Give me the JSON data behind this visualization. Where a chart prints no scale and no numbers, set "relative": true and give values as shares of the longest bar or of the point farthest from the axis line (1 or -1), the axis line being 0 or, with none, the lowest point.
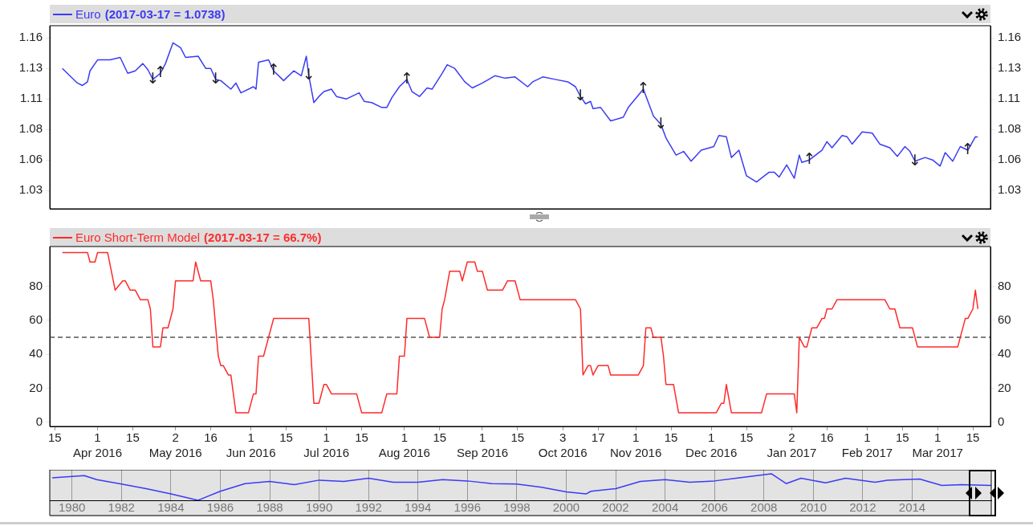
{
  "chart_data": [
    {
      "type": "line",
      "title": "(2017-03-17 = 1.0738)",
      "legend": "top left",
      "tick_labels": "y",
      "x": [
        "2016-03-18",
        "2016-03-24",
        "2016-03-26",
        "2016-03-28",
        "2016-03-29",
        "2016-04-01",
        "2016-04-06",
        "2016-04-10",
        "2016-04-13",
        "2016-04-16",
        "2016-04-19",
        "2016-04-21",
        "2016-04-23",
        "2016-04-26",
        "2016-04-28",
        "2016-05-01",
        "2016-05-04",
        "2016-05-06",
        "2016-05-11",
        "2016-05-14",
        "2016-05-16",
        "2016-05-18",
        "2016-05-20",
        "2016-05-24",
        "2016-05-26",
        "2016-05-28",
        "2016-06-02",
        "2016-06-03",
        "2016-06-04",
        "2016-06-08",
        "2016-06-10",
        "2016-06-14",
        "2016-06-18",
        "2016-06-21",
        "2016-06-23",
        "2016-06-24",
        "2016-06-26",
        "2016-06-28",
        "2016-06-30",
        "2016-07-03",
        "2016-07-05",
        "2016-07-09",
        "2016-07-14",
        "2016-07-16",
        "2016-07-19",
        "2016-07-23",
        "2016-07-25",
        "2016-07-27",
        "2016-07-30",
        "2016-08-02",
        "2016-08-04",
        "2016-08-07",
        "2016-08-10",
        "2016-08-12",
        "2016-08-16",
        "2016-08-18",
        "2016-08-21",
        "2016-08-25",
        "2016-08-28",
        "2016-09-01",
        "2016-09-06",
        "2016-09-10",
        "2016-09-14",
        "2016-09-19",
        "2016-09-21",
        "2016-09-25",
        "2016-09-30",
        "2016-10-05",
        "2016-10-08",
        "2016-10-10",
        "2016-10-12",
        "2016-10-14",
        "2016-10-15",
        "2016-10-18",
        "2016-10-22",
        "2016-10-27",
        "2016-10-29",
        "2016-11-04",
        "2016-11-06",
        "2016-11-08",
        "2016-11-11",
        "2016-11-13",
        "2016-11-17",
        "2016-11-20",
        "2016-11-23",
        "2016-11-27",
        "2016-12-02",
        "2016-12-04",
        "2016-12-07",
        "2016-12-09",
        "2016-12-12",
        "2016-12-15",
        "2016-12-19",
        "2016-12-24",
        "2016-12-26",
        "2016-12-28",
        "2016-12-31",
        "2017-01-03",
        "2017-01-05",
        "2017-01-06",
        "2017-01-09",
        "2017-01-14",
        "2017-01-16",
        "2017-01-18",
        "2017-01-22",
        "2017-01-24",
        "2017-01-26",
        "2017-01-30",
        "2017-02-03",
        "2017-02-06",
        "2017-02-10",
        "2017-02-13",
        "2017-02-16",
        "2017-02-18",
        "2017-02-20",
        "2017-02-24",
        "2017-02-27",
        "2017-03-02",
        "2017-03-04",
        "2017-03-07",
        "2017-03-10",
        "2017-03-13",
        "2017-03-16",
        "2017-03-17"
      ],
      "series": [
        {
          "name": "Euro",
          "color": "#3b3bf5",
          "values": [
            1.13,
            1.118,
            1.116,
            1.119,
            1.128,
            1.137,
            1.137,
            1.139,
            1.126,
            1.128,
            1.134,
            1.129,
            1.121,
            1.126,
            1.134,
            1.151,
            1.147,
            1.139,
            1.14,
            1.13,
            1.13,
            1.121,
            1.12,
            1.113,
            1.118,
            1.11,
            1.115,
            1.113,
            1.135,
            1.137,
            1.128,
            1.12,
            1.128,
            1.124,
            1.14,
            1.124,
            1.102,
            1.107,
            1.111,
            1.113,
            1.107,
            1.105,
            1.11,
            1.103,
            1.102,
            1.098,
            1.098,
            1.106,
            1.115,
            1.121,
            1.111,
            1.107,
            1.114,
            1.113,
            1.126,
            1.133,
            1.13,
            1.119,
            1.114,
            1.118,
            1.124,
            1.122,
            1.123,
            1.115,
            1.119,
            1.123,
            1.121,
            1.119,
            1.115,
            1.107,
            1.101,
            1.103,
            1.097,
            1.098,
            1.087,
            1.09,
            1.098,
            1.113,
            1.102,
            1.091,
            1.084,
            1.073,
            1.059,
            1.062,
            1.054,
            1.063,
            1.066,
            1.075,
            1.074,
            1.057,
            1.063,
            1.042,
            1.037,
            1.045,
            1.045,
            1.041,
            1.051,
            1.04,
            1.059,
            1.053,
            1.055,
            1.063,
            1.07,
            1.065,
            1.075,
            1.074,
            1.068,
            1.078,
            1.077,
            1.068,
            1.065,
            1.058,
            1.066,
            1.062,
            1.054,
            1.057,
            1.055,
            1.05,
            1.061,
            1.054,
            1.066,
            1.063,
            1.074,
            1.0738
          ]
        }
      ],
      "xlim": [
        "2016-03-13",
        "2017-03-22"
      ],
      "ylim": [
        1.015,
        1.165
      ],
      "yticks": [
        1.03,
        {
          "value": 1.055,
          "label": "1.06"
        },
        1.08,
        {
          "value": 1.105,
          "label": "1.11"
        },
        1.13,
        {
          "value": 1.155,
          "label": "1.16"
        }
      ],
      "y2lim": [
        1.015,
        1.165
      ],
      "y2ticks": [
        1.03,
        {
          "value": 1.055,
          "label": "1.06"
        },
        1.08,
        {
          "value": 1.105,
          "label": "1.11"
        },
        1.13,
        {
          "value": 1.155,
          "label": "1.16"
        }
      ],
      "annotations": [
        {
          "text": "↓",
          "x": "2016-04-23",
          "y": 1.121
        },
        {
          "text": "↑",
          "x": "2016-04-26",
          "y": 1.126
        },
        {
          "text": "↓",
          "x": "2016-05-18",
          "y": 1.121
        },
        {
          "text": "↑",
          "x": "2016-06-10",
          "y": 1.128
        },
        {
          "text": "↓",
          "x": "2016-06-24",
          "y": 1.124
        },
        {
          "text": "↑",
          "x": "2016-08-02",
          "y": 1.121
        },
        {
          "text": "↓",
          "x": "2016-10-10",
          "y": 1.107
        },
        {
          "text": "↑",
          "x": "2016-11-04",
          "y": 1.113
        },
        {
          "text": "↓",
          "x": "2016-11-11",
          "y": 1.084
        },
        {
          "text": "↑",
          "x": "2017-01-09",
          "y": 1.055
        },
        {
          "text": "↓",
          "x": "2017-02-20",
          "y": 1.054
        },
        {
          "text": "↑",
          "x": "2017-03-13",
          "y": 1.063
        }
      ]
    },
    {
      "type": "line",
      "title": "(2017-03-17 = 66.7%)",
      "legend": "top left",
      "x": [
        "2016-03-18",
        "2016-03-28",
        "2016-03-29",
        "2016-03-31",
        "2016-04-01",
        "2016-04-05",
        "2016-04-08",
        "2016-04-11",
        "2016-04-12",
        "2016-04-14",
        "2016-04-16",
        "2016-04-18",
        "2016-04-21",
        "2016-04-22",
        "2016-04-23",
        "2016-04-26",
        "2016-04-27",
        "2016-04-29",
        "2016-05-01",
        "2016-05-02",
        "2016-05-09",
        "2016-05-10",
        "2016-05-12",
        "2016-05-16",
        "2016-05-17",
        "2016-05-19",
        "2016-05-20",
        "2016-05-21",
        "2016-05-23",
        "2016-05-24",
        "2016-05-26",
        "2016-05-31",
        "2016-06-02",
        "2016-06-03",
        "2016-06-04",
        "2016-06-06",
        "2016-06-10",
        "2016-06-24",
        "2016-06-26",
        "2016-06-28",
        "2016-06-30",
        "2016-07-01",
        "2016-07-03",
        "2016-07-13",
        "2016-07-15",
        "2016-07-23",
        "2016-07-25",
        "2016-07-29",
        "2016-07-30",
        "2016-08-01",
        "2016-08-02",
        "2016-08-09",
        "2016-08-11",
        "2016-08-15",
        "2016-08-16",
        "2016-08-17",
        "2016-08-19",
        "2016-08-23",
        "2016-08-24",
        "2016-08-26",
        "2016-08-29",
        "2016-08-30",
        "2016-09-01",
        "2016-09-03",
        "2016-09-09",
        "2016-09-11",
        "2016-09-14",
        "2016-09-16",
        "2016-10-08",
        "2016-10-10",
        "2016-10-11",
        "2016-10-13",
        "2016-10-14",
        "2016-10-15",
        "2016-10-17",
        "2016-10-21",
        "2016-10-22",
        "2016-11-02",
        "2016-11-04",
        "2016-11-05",
        "2016-11-07",
        "2016-11-08",
        "2016-11-11",
        "2016-11-12",
        "2016-11-13",
        "2016-11-16",
        "2016-11-18",
        "2016-12-03",
        "2016-12-05",
        "2016-12-06",
        "2016-12-07",
        "2016-12-09",
        "2016-12-21",
        "2016-12-23",
        "2017-01-03",
        "2017-01-04",
        "2017-01-05",
        "2017-01-07",
        "2017-01-08",
        "2017-01-10",
        "2017-01-12",
        "2017-01-14",
        "2017-01-15",
        "2017-01-16",
        "2017-01-18",
        "2017-01-20",
        "2017-02-08",
        "2017-02-10",
        "2017-02-12",
        "2017-02-14",
        "2017-02-19",
        "2017-02-21",
        "2017-03-09",
        "2017-03-12",
        "2017-03-13",
        "2017-03-15",
        "2017-03-16",
        "2017-03-17"
      ],
      "series": [
        {
          "name": "Euro Short-Term Model",
          "color": "#ff2a2a",
          "values": [
            100,
            100,
            94.4,
            94.4,
            100,
            100,
            77.8,
            83.3,
            83.3,
            77.8,
            77.8,
            72.2,
            72.2,
            66.7,
            44.4,
            44.4,
            55.6,
            55.6,
            66.7,
            83.3,
            83.3,
            94.4,
            83.3,
            83.3,
            72.2,
            38.9,
            33.3,
            33.3,
            27.8,
            27.8,
            5.6,
            5.6,
            16.7,
            16.7,
            38.9,
            38.9,
            61.1,
            61.1,
            11.1,
            11.1,
            22.2,
            22.2,
            16.7,
            16.7,
            5.6,
            5.6,
            16.7,
            16.7,
            38.9,
            38.9,
            61.1,
            61.1,
            50,
            50,
            66.7,
            72.2,
            88.9,
            88.9,
            83.3,
            94.4,
            94.4,
            88.9,
            88.9,
            77.8,
            77.8,
            83.3,
            83.3,
            72.2,
            72.2,
            66.7,
            27.8,
            33.3,
            33.3,
            27.8,
            33.3,
            33.3,
            27.8,
            27.8,
            33.3,
            55.6,
            55.6,
            50,
            50,
            38.9,
            22.2,
            22.2,
            5.6,
            5.6,
            11.1,
            11.1,
            22.2,
            5.6,
            5.6,
            16.7,
            16.7,
            5.6,
            50,
            44.4,
            44.4,
            55.6,
            55.6,
            61.1,
            61.1,
            66.7,
            66.7,
            72.2,
            72.2,
            66.7,
            66.7,
            55.6,
            55.6,
            44.4,
            44.4,
            61.1,
            61.1,
            66.7,
            77.8,
            66.7
          ]
        }
      ],
      "xlim": [
        "2016-03-13",
        "2017-03-22"
      ],
      "xticks": [
        {
          "value": "2016-03-15",
          "label": "15"
        },
        {
          "value": "2016-04-01",
          "label": "1"
        },
        {
          "value": "2016-04-15",
          "label": "15"
        },
        {
          "value": "2016-05-02",
          "label": "2"
        },
        {
          "value": "2016-05-16",
          "label": "16"
        },
        {
          "value": "2016-06-01",
          "label": "1"
        },
        {
          "value": "2016-06-15",
          "label": "15"
        },
        {
          "value": "2016-07-01",
          "label": "1"
        },
        {
          "value": "2016-07-15",
          "label": "15"
        },
        {
          "value": "2016-08-01",
          "label": "1"
        },
        {
          "value": "2016-08-15",
          "label": "15"
        },
        {
          "value": "2016-09-01",
          "label": "1"
        },
        {
          "value": "2016-09-15",
          "label": "15"
        },
        {
          "value": "2016-10-03",
          "label": "3"
        },
        {
          "value": "2016-10-17",
          "label": "17"
        },
        {
          "value": "2016-11-01",
          "label": "1"
        },
        {
          "value": "2016-11-15",
          "label": "15"
        },
        {
          "value": "2016-12-01",
          "label": "1"
        },
        {
          "value": "2016-12-15",
          "label": "15"
        },
        {
          "value": "2017-01-02",
          "label": "2"
        },
        {
          "value": "2017-01-16",
          "label": "16"
        },
        {
          "value": "2017-02-01",
          "label": "1"
        },
        {
          "value": "2017-02-15",
          "label": "15"
        },
        {
          "value": "2017-03-01",
          "label": "1"
        },
        {
          "value": "2017-03-15",
          "label": "15"
        }
      ],
      "x2lim": [
        "2016-03-13",
        "2017-03-22"
      ],
      "x2ticks": [
        {
          "value": "2016-04-01",
          "label": "Apr 2016"
        },
        {
          "value": "2016-05-02",
          "label": "May 2016"
        },
        {
          "value": "2016-06-01",
          "label": "Jun 2016"
        },
        {
          "value": "2016-07-01",
          "label": "Jul 2016"
        },
        {
          "value": "2016-08-01",
          "label": "Aug 2016"
        },
        {
          "value": "2016-09-01",
          "label": "Sep 2016"
        },
        {
          "value": "2016-10-03",
          "label": "Oct 2016"
        },
        {
          "value": "2016-11-01",
          "label": "Nov 2016"
        },
        {
          "value": "2016-12-01",
          "label": "Dec 2016"
        },
        {
          "value": "2017-01-02",
          "label": "Jan 2017"
        },
        {
          "value": "2017-02-01",
          "label": "Feb 2017"
        },
        {
          "value": "2017-03-01",
          "label": "Mar 2017"
        }
      ],
      "ylim": [
        -2.5,
        103.5
      ],
      "yticks": [
        0,
        20,
        40,
        60,
        80
      ],
      "y2lim": [
        -2.5,
        103.5
      ],
      "y2ticks": [
        0,
        20,
        40,
        60,
        80
      ],
      "ref_lines": [
        {
          "axis": "y",
          "value": 50,
          "color": "#555555",
          "line_style": "dashed"
        }
      ]
    },
    {
      "type": "line",
      "relative": true,
      "grid": "x",
      "x": [
        1979.2,
        1980.5,
        1981,
        1982,
        1983,
        1984,
        1985.1,
        1986,
        1987,
        1988,
        1989,
        1990,
        1991,
        1992,
        1993,
        1994,
        1995,
        1996,
        1997,
        1998,
        1999,
        2000,
        2000.8,
        2001,
        2002,
        2003,
        2004,
        2005,
        2006,
        2007,
        2008.3,
        2008.9,
        2009.5,
        2010.5,
        2011.3,
        2012.5,
        2013,
        2014.3,
        2015.2,
        2016,
        2017.2
      ],
      "series": [
        {
          "color": "#3b3bf5",
          "values": [
            0.85,
            0.93,
            0.78,
            0.61,
            0.44,
            0.24,
            0,
            0.34,
            0.63,
            0.71,
            0.59,
            0.76,
            0.71,
            0.83,
            0.68,
            0.68,
            0.78,
            0.73,
            0.63,
            0.61,
            0.49,
            0.32,
            0.24,
            0.34,
            0.44,
            0.71,
            0.78,
            0.68,
            0.73,
            0.85,
            1,
            0.63,
            0.83,
            0.66,
            0.83,
            0.68,
            0.76,
            0.8,
            0.56,
            0.59,
            0.56
          ]
        }
      ],
      "xlim": [
        1979.1,
        2017.2
      ],
      "xticks": [
        1980,
        1982,
        1984,
        1986,
        1988,
        1990,
        1992,
        1994,
        1996,
        1998,
        2000,
        2002,
        2004,
        2006,
        2008,
        2010,
        2012,
        2014
      ]
    }
  ]
}
